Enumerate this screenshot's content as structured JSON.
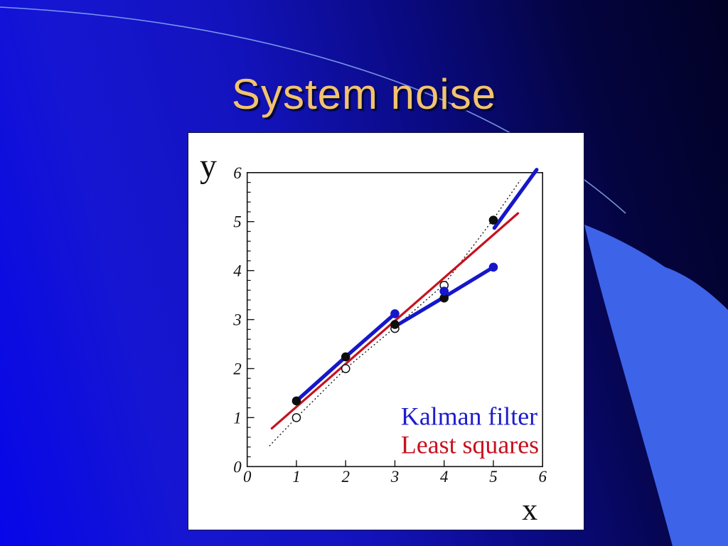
{
  "slide": {
    "title": "System noise"
  },
  "colors": {
    "title": "#f2c36e",
    "background_gradient": [
      "#0606e9",
      "#1616d2",
      "#1313bd",
      "#0a0a82",
      "#04043f",
      "#020226"
    ],
    "swoosh": "#3d63e8",
    "arc_line": "#9cc2ff",
    "panel_background": "#ffffff",
    "ink": "#111111",
    "kalman_blue": "#1517c9",
    "least_squares_red": "#c6121f",
    "legend_blue": "#1c1ccd",
    "legend_red": "#c6121f"
  },
  "chart_data": {
    "type": "line",
    "title": "",
    "xlabel": "x",
    "ylabel": "y",
    "xlim": [
      0,
      6
    ],
    "ylim": [
      0,
      6
    ],
    "x_ticks": [
      0,
      1,
      2,
      3,
      4,
      5,
      6
    ],
    "y_ticks": [
      0,
      1,
      2,
      3,
      4,
      5,
      6
    ],
    "y_minor_step": 0.2,
    "grid": false,
    "legend_position": "lower-right",
    "legend": [
      {
        "label": "Kalman filter",
        "color": "#1c1ccd"
      },
      {
        "label": "Least squares",
        "color": "#c6121f"
      }
    ],
    "series": [
      {
        "name": "measurements-open-circles",
        "kind": "scatter-open",
        "color": "#111111",
        "points": [
          [
            1,
            1.0
          ],
          [
            2,
            2.0
          ],
          [
            3,
            2.82
          ],
          [
            4,
            3.7
          ]
        ]
      },
      {
        "name": "true-trajectory-dotted",
        "kind": "dotted",
        "color": "#1a1a1a",
        "width": 1.4,
        "points": [
          [
            0.45,
            0.42
          ],
          [
            1,
            1.0
          ],
          [
            2,
            2.0
          ],
          [
            3,
            2.84
          ],
          [
            4,
            3.72
          ],
          [
            5,
            5.05
          ],
          [
            5.55,
            5.85
          ]
        ]
      },
      {
        "name": "least-squares-fit",
        "kind": "line",
        "color": "#c6121f",
        "width": 3.2,
        "points": [
          [
            0.5,
            0.78
          ],
          [
            5.5,
            5.17
          ]
        ]
      },
      {
        "name": "kalman-filter-segment-1",
        "kind": "line",
        "color": "#1517c9",
        "width": 5.2,
        "points": [
          [
            1,
            1.34
          ],
          [
            2,
            2.24
          ],
          [
            3,
            3.12
          ]
        ]
      },
      {
        "name": "kalman-filter-segment-2",
        "kind": "line",
        "color": "#1517c9",
        "width": 5.2,
        "points": [
          [
            3,
            2.86
          ],
          [
            4,
            3.46
          ],
          [
            5,
            4.07
          ]
        ]
      },
      {
        "name": "kalman-filter-segment-3",
        "kind": "line",
        "color": "#1517c9",
        "width": 5.2,
        "points": [
          [
            5.02,
            4.87
          ],
          [
            5.88,
            6.06
          ]
        ]
      },
      {
        "name": "estimate-points-black",
        "kind": "scatter",
        "color": "#0d0d0d",
        "points": [
          [
            1,
            1.34
          ],
          [
            2,
            2.24
          ],
          [
            3,
            2.9
          ],
          [
            4,
            3.44
          ],
          [
            5,
            5.03
          ]
        ]
      },
      {
        "name": "estimate-points-blue",
        "kind": "scatter",
        "color": "#1517c9",
        "points": [
          [
            3,
            3.12
          ],
          [
            4,
            3.58
          ],
          [
            5,
            4.07
          ]
        ]
      }
    ]
  }
}
